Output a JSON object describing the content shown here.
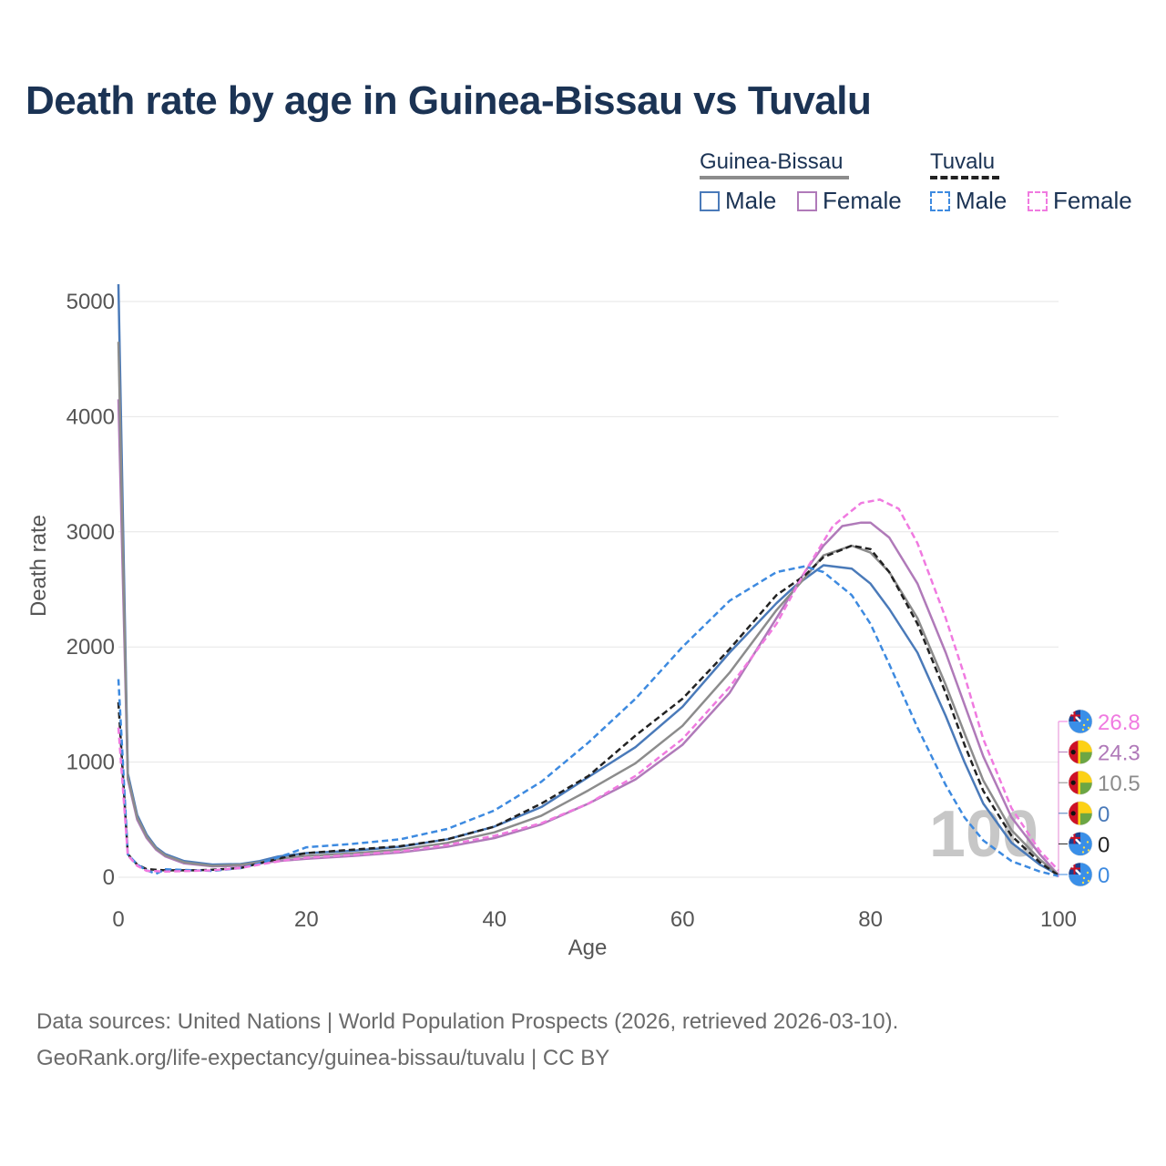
{
  "title": "Death rate by age in Guinea-Bissau vs Tuvalu",
  "legend": {
    "groups": [
      {
        "name": "Guinea-Bissau",
        "line_color": "#8c8c8c",
        "dash": "solid",
        "items": [
          {
            "label": "Male",
            "color": "#4a7ab9",
            "dash": "solid"
          },
          {
            "label": "Female",
            "color": "#b07ab9",
            "dash": "solid"
          }
        ]
      },
      {
        "name": "Tuvalu",
        "line_color": "#222222",
        "dash": "dashed",
        "items": [
          {
            "label": "Male",
            "color": "#3d8ae0",
            "dash": "dashed"
          },
          {
            "label": "Female",
            "color": "#f07ae0",
            "dash": "dashed"
          }
        ]
      }
    ]
  },
  "footer": {
    "line1": "Data sources: United Nations | World Population Prospects (2026, retrieved 2026-03-10).",
    "line2": "GeoRank.org/life-expectancy/guinea-bissau/tuvalu | CC BY"
  },
  "chart_data": {
    "type": "line",
    "xlabel": "Age",
    "ylabel": "Death rate",
    "xlim": [
      0,
      100
    ],
    "ylim": [
      0,
      5000
    ],
    "xticks": [
      0,
      20,
      40,
      60,
      80,
      100
    ],
    "yticks": [
      0,
      1000,
      2000,
      3000,
      4000,
      5000
    ],
    "watermark": "100",
    "series": [
      {
        "name": "Guinea-Bissau Male",
        "color": "#4a7ab9",
        "dash": "solid",
        "points": [
          [
            0,
            5150
          ],
          [
            1,
            900
          ],
          [
            2,
            540
          ],
          [
            3,
            370
          ],
          [
            4,
            260
          ],
          [
            5,
            200
          ],
          [
            7,
            140
          ],
          [
            10,
            110
          ],
          [
            13,
            115
          ],
          [
            15,
            140
          ],
          [
            17,
            180
          ],
          [
            20,
            210
          ],
          [
            25,
            230
          ],
          [
            30,
            265
          ],
          [
            35,
            330
          ],
          [
            40,
            440
          ],
          [
            45,
            610
          ],
          [
            50,
            870
          ],
          [
            55,
            1130
          ],
          [
            60,
            1480
          ],
          [
            65,
            1950
          ],
          [
            70,
            2380
          ],
          [
            72,
            2530
          ],
          [
            75,
            2710
          ],
          [
            78,
            2680
          ],
          [
            80,
            2550
          ],
          [
            82,
            2330
          ],
          [
            85,
            1950
          ],
          [
            88,
            1400
          ],
          [
            90,
            1000
          ],
          [
            92,
            640
          ],
          [
            95,
            300
          ],
          [
            98,
            110
          ],
          [
            100,
            20
          ]
        ]
      },
      {
        "name": "Guinea-Bissau Female",
        "color": "#b07ab9",
        "dash": "solid",
        "points": [
          [
            0,
            4150
          ],
          [
            1,
            850
          ],
          [
            2,
            500
          ],
          [
            3,
            340
          ],
          [
            4,
            240
          ],
          [
            5,
            180
          ],
          [
            7,
            120
          ],
          [
            10,
            95
          ],
          [
            13,
            100
          ],
          [
            15,
            120
          ],
          [
            17,
            140
          ],
          [
            20,
            160
          ],
          [
            25,
            185
          ],
          [
            30,
            215
          ],
          [
            35,
            265
          ],
          [
            40,
            340
          ],
          [
            45,
            460
          ],
          [
            50,
            640
          ],
          [
            55,
            850
          ],
          [
            60,
            1150
          ],
          [
            65,
            1600
          ],
          [
            70,
            2250
          ],
          [
            73,
            2650
          ],
          [
            75,
            2880
          ],
          [
            77,
            3050
          ],
          [
            79,
            3080
          ],
          [
            80,
            3080
          ],
          [
            82,
            2950
          ],
          [
            85,
            2550
          ],
          [
            88,
            1950
          ],
          [
            90,
            1500
          ],
          [
            92,
            1050
          ],
          [
            95,
            520
          ],
          [
            98,
            200
          ],
          [
            100,
            20
          ]
        ]
      },
      {
        "name": "Guinea-Bissau Total",
        "color": "#8c8c8c",
        "dash": "solid",
        "points": [
          [
            0,
            4650
          ],
          [
            1,
            870
          ],
          [
            2,
            520
          ],
          [
            3,
            355
          ],
          [
            4,
            250
          ],
          [
            5,
            190
          ],
          [
            7,
            130
          ],
          [
            10,
            100
          ],
          [
            13,
            108
          ],
          [
            15,
            130
          ],
          [
            17,
            160
          ],
          [
            20,
            185
          ],
          [
            25,
            208
          ],
          [
            30,
            240
          ],
          [
            35,
            298
          ],
          [
            40,
            390
          ],
          [
            45,
            535
          ],
          [
            50,
            755
          ],
          [
            55,
            990
          ],
          [
            60,
            1315
          ],
          [
            65,
            1775
          ],
          [
            70,
            2320
          ],
          [
            73,
            2600
          ],
          [
            75,
            2795
          ],
          [
            78,
            2880
          ],
          [
            80,
            2820
          ],
          [
            82,
            2650
          ],
          [
            85,
            2250
          ],
          [
            88,
            1670
          ],
          [
            90,
            1250
          ],
          [
            92,
            840
          ],
          [
            95,
            410
          ],
          [
            98,
            155
          ],
          [
            100,
            20
          ]
        ]
      },
      {
        "name": "Tuvalu Total",
        "color": "#222222",
        "dash": "dashed",
        "points": [
          [
            0,
            1520
          ],
          [
            1,
            200
          ],
          [
            2,
            110
          ],
          [
            3,
            70
          ],
          [
            5,
            60
          ],
          [
            8,
            60
          ],
          [
            10,
            65
          ],
          [
            13,
            80
          ],
          [
            15,
            120
          ],
          [
            18,
            180
          ],
          [
            20,
            210
          ],
          [
            25,
            240
          ],
          [
            30,
            270
          ],
          [
            35,
            330
          ],
          [
            40,
            440
          ],
          [
            45,
            640
          ],
          [
            50,
            880
          ],
          [
            55,
            1230
          ],
          [
            60,
            1550
          ],
          [
            65,
            1980
          ],
          [
            70,
            2450
          ],
          [
            73,
            2620
          ],
          [
            75,
            2780
          ],
          [
            78,
            2880
          ],
          [
            80,
            2850
          ],
          [
            82,
            2650
          ],
          [
            85,
            2200
          ],
          [
            88,
            1600
          ],
          [
            90,
            1150
          ],
          [
            92,
            750
          ],
          [
            95,
            360
          ],
          [
            98,
            130
          ],
          [
            100,
            15
          ]
        ]
      },
      {
        "name": "Tuvalu Male",
        "color": "#3d8ae0",
        "dash": "dashed",
        "points": [
          [
            0,
            1720
          ],
          [
            1,
            200
          ],
          [
            2,
            110
          ],
          [
            3,
            60
          ],
          [
            4,
            30
          ],
          [
            5,
            70
          ],
          [
            8,
            60
          ],
          [
            10,
            55
          ],
          [
            13,
            80
          ],
          [
            15,
            120
          ],
          [
            18,
            200
          ],
          [
            20,
            260
          ],
          [
            25,
            290
          ],
          [
            30,
            330
          ],
          [
            35,
            420
          ],
          [
            40,
            580
          ],
          [
            45,
            830
          ],
          [
            50,
            1170
          ],
          [
            55,
            1550
          ],
          [
            60,
            2000
          ],
          [
            65,
            2400
          ],
          [
            70,
            2650
          ],
          [
            73,
            2700
          ],
          [
            75,
            2650
          ],
          [
            78,
            2450
          ],
          [
            80,
            2200
          ],
          [
            82,
            1850
          ],
          [
            85,
            1300
          ],
          [
            88,
            800
          ],
          [
            90,
            520
          ],
          [
            92,
            320
          ],
          [
            95,
            140
          ],
          [
            98,
            50
          ],
          [
            100,
            10
          ]
        ]
      },
      {
        "name": "Tuvalu Female",
        "color": "#f07ae0",
        "dash": "dashed",
        "points": [
          [
            0,
            1300
          ],
          [
            1,
            190
          ],
          [
            2,
            100
          ],
          [
            3,
            55
          ],
          [
            5,
            50
          ],
          [
            8,
            55
          ],
          [
            10,
            60
          ],
          [
            13,
            80
          ],
          [
            15,
            110
          ],
          [
            18,
            150
          ],
          [
            20,
            170
          ],
          [
            25,
            195
          ],
          [
            30,
            225
          ],
          [
            35,
            280
          ],
          [
            40,
            360
          ],
          [
            45,
            470
          ],
          [
            50,
            640
          ],
          [
            55,
            880
          ],
          [
            60,
            1200
          ],
          [
            65,
            1650
          ],
          [
            70,
            2200
          ],
          [
            73,
            2650
          ],
          [
            76,
            3050
          ],
          [
            79,
            3250
          ],
          [
            81,
            3280
          ],
          [
            83,
            3200
          ],
          [
            85,
            2900
          ],
          [
            88,
            2250
          ],
          [
            90,
            1750
          ],
          [
            92,
            1200
          ],
          [
            95,
            600
          ],
          [
            98,
            230
          ],
          [
            100,
            60
          ]
        ]
      }
    ],
    "end_labels": [
      {
        "value": "26.8",
        "color": "#f07ae0",
        "flag": "tuvalu"
      },
      {
        "value": "24.3",
        "color": "#b07ab9",
        "flag": "guinea-bissau"
      },
      {
        "value": "10.5",
        "color": "#8c8c8c",
        "flag": "guinea-bissau"
      },
      {
        "value": "0",
        "color": "#4a7ab9",
        "flag": "guinea-bissau"
      },
      {
        "value": "0",
        "color": "#222222",
        "flag": "tuvalu"
      },
      {
        "value": "0",
        "color": "#3d8ae0",
        "flag": "tuvalu"
      }
    ]
  }
}
